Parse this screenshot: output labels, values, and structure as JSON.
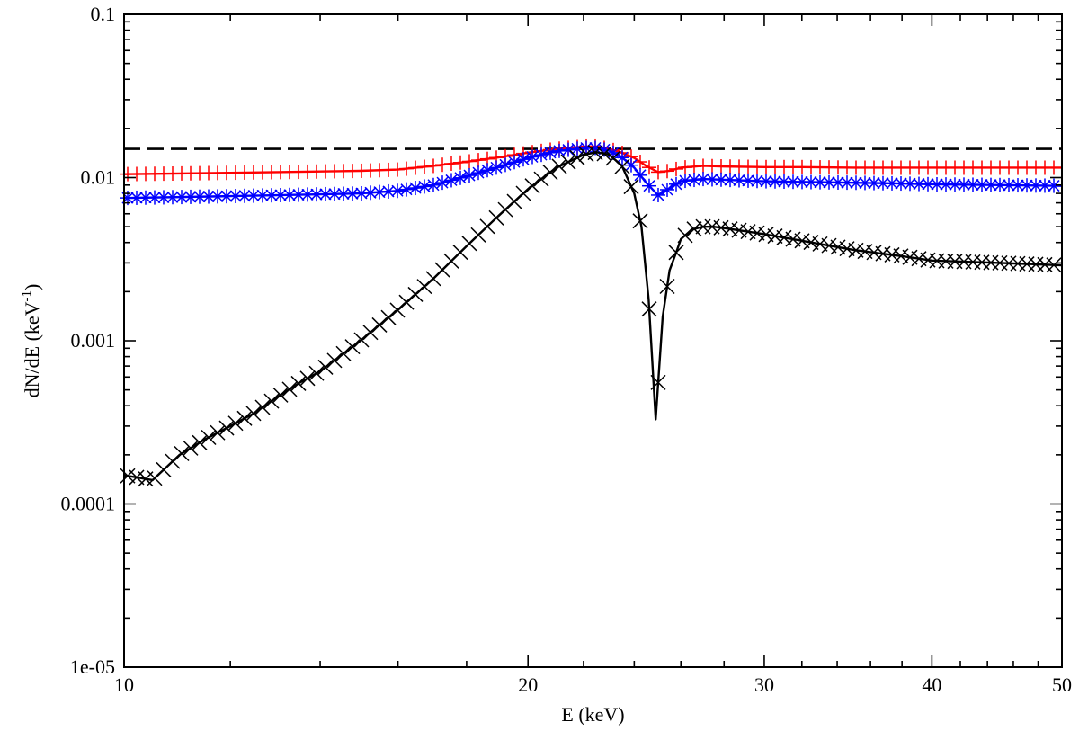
{
  "chart_data": {
    "type": "line",
    "title": "",
    "xscale": "log",
    "yscale": "log",
    "xlim": [
      10,
      50
    ],
    "ylim": [
      1e-05,
      0.1
    ],
    "xlabel": "E (keV)",
    "ylabel_main": "dN/dE (keV",
    "ylabel_sup": "-1",
    "ylabel_close": ")",
    "xticks": [
      {
        "value": 10,
        "label": "10"
      },
      {
        "value": 20,
        "label": "20"
      },
      {
        "value": 30,
        "label": "30"
      },
      {
        "value": 40,
        "label": "40"
      },
      {
        "value": 50,
        "label": "50"
      }
    ],
    "yticks": [
      {
        "value": 1e-05,
        "label": "1e-05"
      },
      {
        "value": 0.0001,
        "label": "0.0001"
      },
      {
        "value": 0.001,
        "label": "0.001"
      },
      {
        "value": 0.01,
        "label": "0.01"
      },
      {
        "value": 0.1,
        "label": "0.1"
      }
    ],
    "reference_line": {
      "name": "flat reference",
      "value": 0.015,
      "color": "#000000",
      "style": "dashed"
    },
    "series": [
      {
        "name": "red",
        "color": "#ff0000",
        "marker": "plus",
        "x": [
          10.0,
          11.0,
          12.0,
          13.0,
          14.0,
          15.0,
          16.0,
          17.0,
          18.0,
          19.0,
          20.0,
          21.0,
          22.0,
          22.5,
          23.0,
          23.5,
          24.0,
          24.5,
          25.0,
          25.5,
          26.0,
          27.0,
          28.0,
          30.0,
          32.0,
          35.0,
          38.0,
          40.0,
          45.0,
          50.0
        ],
        "y": [
          0.0105,
          0.0106,
          0.0107,
          0.0108,
          0.0109,
          0.011,
          0.0112,
          0.0118,
          0.0125,
          0.0133,
          0.0142,
          0.015,
          0.0155,
          0.0155,
          0.015,
          0.0142,
          0.0132,
          0.0118,
          0.0108,
          0.011,
          0.0115,
          0.0118,
          0.0117,
          0.0116,
          0.0116,
          0.0115,
          0.0115,
          0.0115,
          0.0115,
          0.0115
        ]
      },
      {
        "name": "blue",
        "color": "#0000ff",
        "marker": "star",
        "x": [
          10.0,
          11.0,
          12.0,
          13.0,
          14.0,
          15.0,
          16.0,
          17.0,
          18.0,
          19.0,
          20.0,
          21.0,
          22.0,
          22.5,
          23.0,
          23.5,
          24.0,
          24.5,
          25.0,
          25.5,
          26.0,
          27.0,
          28.0,
          30.0,
          32.0,
          35.0,
          38.0,
          40.0,
          45.0,
          50.0
        ],
        "y": [
          0.0075,
          0.0076,
          0.0077,
          0.0078,
          0.0079,
          0.008,
          0.0083,
          0.009,
          0.0102,
          0.0116,
          0.0132,
          0.0145,
          0.0152,
          0.0152,
          0.0146,
          0.0133,
          0.0115,
          0.0093,
          0.0078,
          0.0086,
          0.0095,
          0.0098,
          0.0097,
          0.0095,
          0.0094,
          0.0093,
          0.0092,
          0.0091,
          0.009,
          0.0089
        ]
      },
      {
        "name": "black",
        "color": "#000000",
        "marker": "cross",
        "x": [
          10.0,
          10.5,
          11.0,
          11.5,
          12.0,
          12.5,
          13.0,
          13.5,
          14.0,
          15.0,
          16.0,
          17.0,
          18.0,
          19.0,
          20.0,
          21.0,
          22.0,
          22.5,
          23.0,
          23.5,
          24.0,
          24.3,
          24.6,
          24.9,
          25.2,
          25.5,
          25.8,
          26.0,
          26.5,
          27.0,
          27.5,
          28.0,
          29.0,
          30.0,
          32.0,
          35.0,
          38.0,
          40.0,
          45.0,
          50.0
        ],
        "y": [
          0.00015,
          0.00014,
          0.0002,
          0.00025,
          0.0003,
          0.00036,
          0.00045,
          0.00055,
          0.00065,
          0.001,
          0.00155,
          0.0024,
          0.0038,
          0.0058,
          0.0085,
          0.0115,
          0.0138,
          0.0143,
          0.0138,
          0.0118,
          0.008,
          0.005,
          0.0018,
          0.00033,
          0.0014,
          0.0027,
          0.0035,
          0.0042,
          0.0048,
          0.005,
          0.005,
          0.0049,
          0.0047,
          0.0045,
          0.0041,
          0.0036,
          0.0033,
          0.0031,
          0.003,
          0.0029
        ]
      }
    ]
  }
}
